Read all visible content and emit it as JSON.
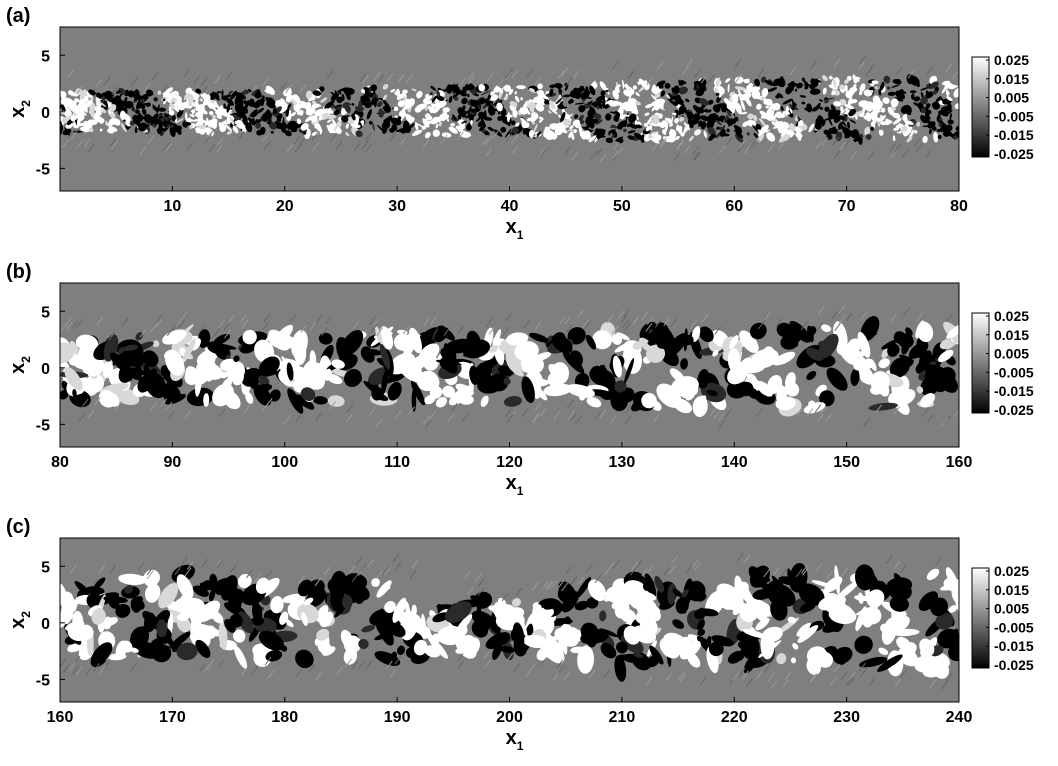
{
  "colors": {
    "field_background": "#7f7f7f",
    "scale_high": "#ffffff",
    "scale_low": "#000000"
  },
  "chart_data": [
    {
      "type": "heatmap",
      "panel_label": "(a)",
      "xlabel_main": "x",
      "xlabel_sub": "1",
      "ylabel_main": "x",
      "ylabel_sub": "2",
      "xlim": [
        0,
        80
      ],
      "ylim": [
        -7,
        7.5
      ],
      "x_ticks": [
        10,
        20,
        30,
        40,
        50,
        60,
        70,
        80
      ],
      "y_ticks": [
        5,
        0,
        -5
      ],
      "colorbar": {
        "min": -0.025,
        "max": 0.025,
        "labels": [
          "0.025",
          "0.015",
          "0.005",
          "-0.005",
          "-0.015",
          "-0.025"
        ]
      },
      "band": {
        "x": [
          0,
          10,
          20,
          30,
          40,
          50,
          60,
          70,
          80
        ],
        "upper": [
          1.8,
          1.9,
          1.9,
          2.3,
          2.2,
          2.6,
          2.8,
          3.1,
          2.8
        ],
        "lower": [
          -1.8,
          -1.9,
          -1.9,
          -2.1,
          -2.0,
          -2.6,
          -2.4,
          -2.6,
          -2.5
        ]
      },
      "fine_scale": true
    },
    {
      "type": "heatmap",
      "panel_label": "(b)",
      "xlabel_main": "x",
      "xlabel_sub": "1",
      "ylabel_main": "x",
      "ylabel_sub": "2",
      "xlim": [
        80,
        160
      ],
      "ylim": [
        -7,
        7.5
      ],
      "x_ticks": [
        80,
        90,
        100,
        110,
        120,
        130,
        140,
        150,
        160
      ],
      "y_ticks": [
        5,
        0,
        -5
      ],
      "colorbar": {
        "min": -0.025,
        "max": 0.025,
        "labels": [
          "0.025",
          "0.015",
          "0.005",
          "-0.005",
          "-0.015",
          "-0.025"
        ]
      },
      "band": {
        "x": [
          80,
          90,
          100,
          110,
          120,
          130,
          140,
          150,
          160
        ],
        "upper": [
          2.6,
          3.0,
          2.9,
          3.2,
          3.0,
          3.3,
          3.3,
          3.6,
          3.3
        ],
        "lower": [
          -2.9,
          -2.8,
          -3.0,
          -3.5,
          -3.0,
          -3.3,
          -3.5,
          -3.6,
          -3.3
        ]
      },
      "fine_scale": false
    },
    {
      "type": "heatmap",
      "panel_label": "(c)",
      "xlabel_main": "x",
      "xlabel_sub": "1",
      "ylabel_main": "x",
      "ylabel_sub": "2",
      "xlim": [
        160,
        240
      ],
      "ylim": [
        -7,
        7.5
      ],
      "x_ticks": [
        160,
        170,
        180,
        190,
        200,
        210,
        220,
        230,
        240
      ],
      "y_ticks": [
        5,
        0,
        -5
      ],
      "colorbar": {
        "min": -0.025,
        "max": 0.025,
        "labels": [
          "0.025",
          "0.015",
          "0.005",
          "-0.005",
          "-0.015",
          "-0.025"
        ]
      },
      "band": {
        "x": [
          160,
          170,
          180,
          190,
          200,
          210,
          220,
          230,
          240
        ],
        "upper": [
          3.0,
          4.5,
          3.3,
          4.2,
          2.0,
          4.0,
          4.3,
          4.0,
          4.5
        ],
        "lower": [
          -2.8,
          -3.2,
          -3.3,
          -3.2,
          -2.6,
          -4.2,
          -4.0,
          -3.8,
          -4.1
        ]
      },
      "fine_scale": false
    }
  ]
}
